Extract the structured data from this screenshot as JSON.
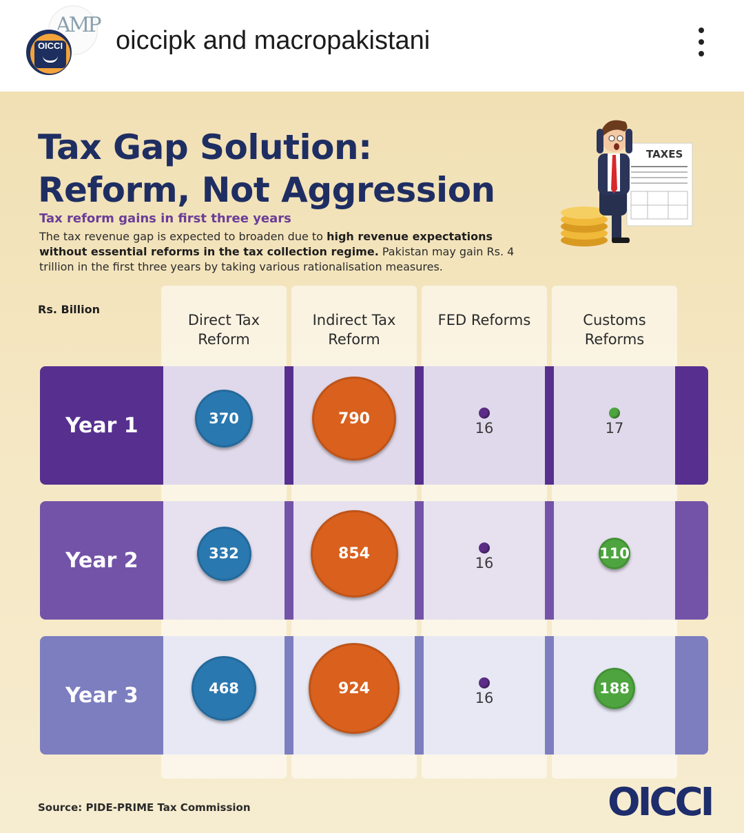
{
  "post": {
    "username_1": "oiccipk",
    "joiner": "and",
    "username_2": "macropakistani",
    "avatar_mp_text": "AMP",
    "avatar_oicci_text": "OICCI"
  },
  "infographic": {
    "title_line1": "Tax Gap Solution:",
    "title_line2": "Reform, Not Aggression",
    "subtitle": "Tax reform gains in first three years",
    "desc_part1": "The tax revenue gap is expected to broaden due to ",
    "desc_bold": "high revenue expectations without essential reforms in the tax collection regime.",
    "desc_part2": " Pakistan may gain Rs. 4 trillion in the first three years by taking various rationalisation measures.",
    "illustration_sign": "TAXES",
    "units": "Rs. Billion",
    "source": "Source: PIDE-PRIME Tax Commission",
    "logo": "OICCI"
  },
  "chart_data": {
    "type": "table",
    "units": "Rs. Billion",
    "columns": [
      "Direct Tax Reform",
      "Indirect Tax Reform",
      "FED Reforms",
      "Customs Reforms"
    ],
    "rows": [
      {
        "label": "Year 1",
        "values": [
          370,
          790,
          16,
          17
        ]
      },
      {
        "label": "Year 2",
        "values": [
          332,
          854,
          16,
          110
        ]
      },
      {
        "label": "Year 3",
        "values": [
          468,
          924,
          16,
          188
        ]
      }
    ],
    "colors": {
      "direct": "#2a78b0",
      "indirect": "#d9601d",
      "fed": "#5b2d86",
      "customs": "#4ea53f",
      "year1": "#57308f",
      "year2": "#7353a8",
      "year3": "#7c7ec0"
    }
  }
}
